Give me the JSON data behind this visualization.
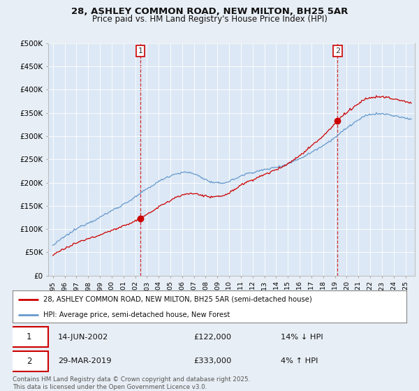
{
  "title_line1": "28, ASHLEY COMMON ROAD, NEW MILTON, BH25 5AR",
  "title_line2": "Price paid vs. HM Land Registry's House Price Index (HPI)",
  "background_color": "#e8eef5",
  "plot_bg_color": "#dce8f5",
  "red_color": "#cc0000",
  "blue_color": "#6699cc",
  "ylim": [
    0,
    500000
  ],
  "yticks": [
    0,
    50000,
    100000,
    150000,
    200000,
    250000,
    300000,
    350000,
    400000,
    450000,
    500000
  ],
  "ytick_labels": [
    "£0",
    "£50K",
    "£100K",
    "£150K",
    "£200K",
    "£250K",
    "£300K",
    "£350K",
    "£400K",
    "£450K",
    "£500K"
  ],
  "xtick_years": [
    1995,
    1996,
    1997,
    1998,
    1999,
    2000,
    2001,
    2002,
    2003,
    2004,
    2005,
    2006,
    2007,
    2008,
    2009,
    2010,
    2011,
    2012,
    2013,
    2014,
    2015,
    2016,
    2017,
    2018,
    2019,
    2020,
    2021,
    2022,
    2023,
    2024,
    2025
  ],
  "sale1_x": 2002.45,
  "sale1_y": 122000,
  "sale2_x": 2019.23,
  "sale2_y": 333000,
  "legend_line1": "28, ASHLEY COMMON ROAD, NEW MILTON, BH25 5AR (semi-detached house)",
  "legend_line2": "HPI: Average price, semi-detached house, New Forest",
  "sale1_date": "14-JUN-2002",
  "sale1_price": "£122,000",
  "sale1_hpi": "14% ↓ HPI",
  "sale2_date": "29-MAR-2019",
  "sale2_price": "£333,000",
  "sale2_hpi": "4% ↑ HPI",
  "footnote": "Contains HM Land Registry data © Crown copyright and database right 2025.\nThis data is licensed under the Open Government Licence v3.0."
}
